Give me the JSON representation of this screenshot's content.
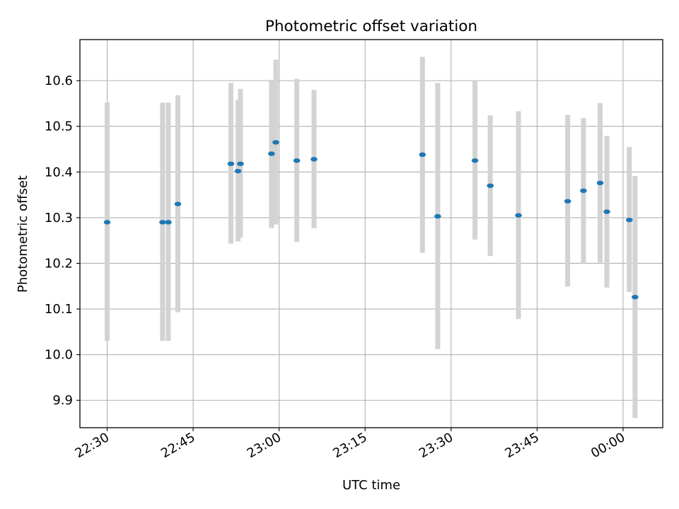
{
  "chart_data": {
    "type": "scatter",
    "title": "Photometric offset variation",
    "xlabel": "UTC time",
    "ylabel": "Photometric offset",
    "x_ticks": [
      "22:30",
      "22:45",
      "23:00",
      "23:15",
      "23:30",
      "23:45",
      "00:00"
    ],
    "y_ticks": [
      "9.9",
      "10.0",
      "10.1",
      "10.2",
      "10.3",
      "10.4",
      "10.5",
      "10.6"
    ],
    "xlim": [
      "22:25:15",
      "00:06:55"
    ],
    "ylim": [
      9.84,
      10.69
    ],
    "grid": true,
    "series": [
      {
        "marker_color": "#1f77b4",
        "errorbar_color": "#d3d3d3",
        "points": [
          {
            "x": "22:30:00",
            "y": 10.29,
            "ylo": 10.03,
            "yhi": 10.552
          },
          {
            "x": "22:39:40",
            "y": 10.29,
            "ylo": 10.03,
            "yhi": 10.552
          },
          {
            "x": "22:40:40",
            "y": 10.29,
            "ylo": 10.03,
            "yhi": 10.552
          },
          {
            "x": "22:42:20",
            "y": 10.33,
            "ylo": 10.093,
            "yhi": 10.568
          },
          {
            "x": "22:51:35",
            "y": 10.418,
            "ylo": 10.243,
            "yhi": 10.595
          },
          {
            "x": "22:52:50",
            "y": 10.402,
            "ylo": 10.248,
            "yhi": 10.558
          },
          {
            "x": "22:53:15",
            "y": 10.418,
            "ylo": 10.256,
            "yhi": 10.582
          },
          {
            "x": "22:58:40",
            "y": 10.44,
            "ylo": 10.277,
            "yhi": 10.602
          },
          {
            "x": "22:59:25",
            "y": 10.465,
            "ylo": 10.285,
            "yhi": 10.646
          },
          {
            "x": "23:03:05",
            "y": 10.425,
            "ylo": 10.247,
            "yhi": 10.604
          },
          {
            "x": "23:06:05",
            "y": 10.428,
            "ylo": 10.277,
            "yhi": 10.58
          },
          {
            "x": "23:25:00",
            "y": 10.438,
            "ylo": 10.223,
            "yhi": 10.652
          },
          {
            "x": "23:27:40",
            "y": 10.303,
            "ylo": 10.012,
            "yhi": 10.595
          },
          {
            "x": "23:34:10",
            "y": 10.425,
            "ylo": 10.252,
            "yhi": 10.6
          },
          {
            "x": "23:36:50",
            "y": 10.37,
            "ylo": 10.216,
            "yhi": 10.524
          },
          {
            "x": "23:41:45",
            "y": 10.305,
            "ylo": 10.078,
            "yhi": 10.533
          },
          {
            "x": "23:50:20",
            "y": 10.336,
            "ylo": 10.149,
            "yhi": 10.525
          },
          {
            "x": "23:53:05",
            "y": 10.359,
            "ylo": 10.2,
            "yhi": 10.518
          },
          {
            "x": "23:56:00",
            "y": 10.376,
            "ylo": 10.202,
            "yhi": 10.551
          },
          {
            "x": "23:57:10",
            "y": 10.313,
            "ylo": 10.147,
            "yhi": 10.479
          },
          {
            "x": "00:01:05",
            "y": 10.295,
            "ylo": 10.137,
            "yhi": 10.455
          },
          {
            "x": "00:02:05",
            "y": 10.126,
            "ylo": 9.861,
            "yhi": 10.391
          }
        ]
      }
    ]
  }
}
